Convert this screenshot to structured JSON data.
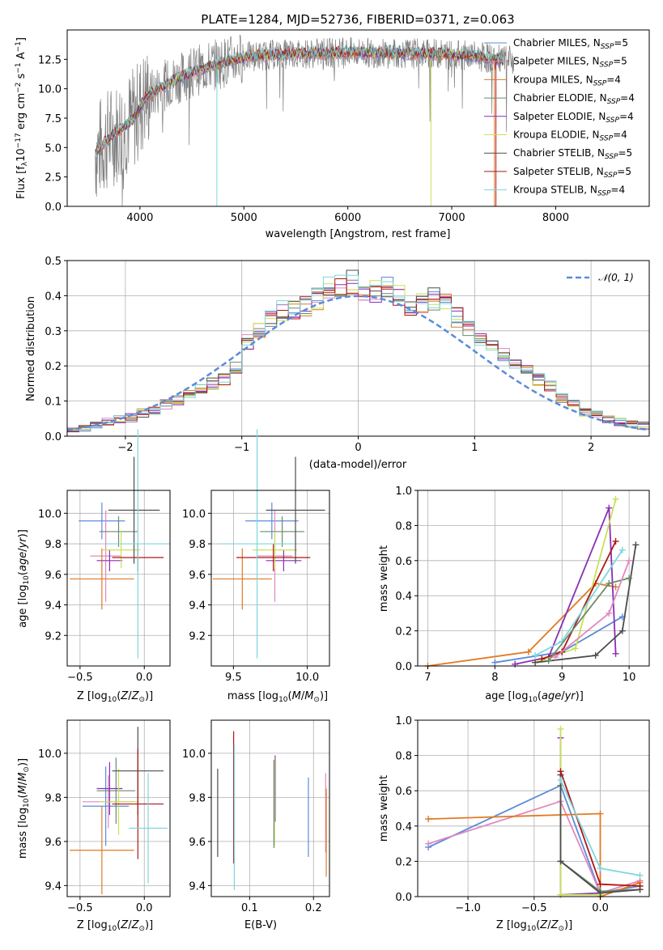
{
  "colors": {
    "chabrier_miles": "#5b8bd9",
    "salpeter_miles": "#e088c0",
    "kroupa_miles": "#e07a24",
    "chabrier_elodie": "#6b8a6b",
    "salpeter_elodie": "#8a2fb5",
    "kroupa_elodie": "#c9e05a",
    "chabrier_stelib": "#4d4d4d",
    "salpeter_stelib": "#b01616",
    "kroupa_stelib": "#7dd6de",
    "data": "#7f7f7f",
    "gauss": "#5b8bd9"
  },
  "chart_data": [
    {
      "id": "spectrum",
      "type": "line",
      "title": "PLATE=1284, MJD=52736, FIBERID=0371, z=0.063",
      "xlabel": "wavelength [Angstrom, rest frame]",
      "ylabel": "Flux [f_λ10^-17 erg cm^-2 s^-1 A^-1]",
      "xlim": [
        3300,
        8900
      ],
      "ylim": [
        0,
        15
      ],
      "xticks": [
        "4000",
        "5000",
        "6000",
        "7000",
        "8000"
      ],
      "yticks": [
        "0.0",
        "2.5",
        "5.0",
        "7.5",
        "10.0",
        "12.5"
      ],
      "continuum": {
        "x": [
          3570,
          3700,
          3850,
          3950,
          4050,
          4150,
          4300,
          4500,
          4700,
          5000,
          5300,
          5600,
          6000,
          6400,
          6800,
          7200,
          7500
        ],
        "y": [
          4.5,
          5.8,
          6.8,
          7.6,
          9.2,
          9.8,
          10.6,
          11.4,
          12.0,
          12.7,
          12.9,
          13.0,
          13.1,
          13.0,
          13.0,
          12.8,
          12.4
        ]
      },
      "legend": [
        "Chabrier MILES, N_SSP=5",
        "Salpeter MILES, N_SSP=5",
        "Kroupa MILES, N_SSP=4",
        "Chabrier ELODIE, N_SSP=4",
        "Salpeter ELODIE, N_SSP=4",
        "Kroupa ELODIE, N_SSP=4",
        "Chabrier STELIB, N_SSP=5",
        "Salpeter STELIB, N_SSP=5",
        "Kroupa STELIB, N_SSP=4"
      ],
      "legend_placement": "right",
      "grid": false
    },
    {
      "id": "residuals",
      "type": "step",
      "xlabel": "(data-model)/error",
      "ylabel": "Normed distribution",
      "xlim": [
        -2.5,
        2.5
      ],
      "ylim": [
        0,
        0.5
      ],
      "xticks": [
        "−2",
        "−1",
        "0",
        "1",
        "2"
      ],
      "yticks": [
        "0.0",
        "0.1",
        "0.2",
        "0.3",
        "0.4",
        "0.5"
      ],
      "bin_width": 0.1,
      "histogram_envelope": [
        0.02,
        0.022,
        0.03,
        0.042,
        0.048,
        0.052,
        0.065,
        0.075,
        0.09,
        0.1,
        0.125,
        0.14,
        0.15,
        0.16,
        0.2,
        0.27,
        0.3,
        0.33,
        0.36,
        0.355,
        0.37,
        0.39,
        0.42,
        0.43,
        0.44,
        0.42,
        0.41,
        0.42,
        0.4,
        0.36,
        0.38,
        0.39,
        0.38,
        0.34,
        0.3,
        0.28,
        0.25,
        0.23,
        0.21,
        0.19,
        0.16,
        0.14,
        0.11,
        0.09,
        0.07,
        0.06,
        0.05,
        0.04,
        0.035,
        0.03
      ],
      "gauss_label": "𝒩(0, 1)",
      "grid": true
    },
    {
      "id": "age_vs_Z",
      "type": "errorbar",
      "xlabel": "Z [log10(Z/Z⊙)]",
      "ylabel": "age  [log10(age/yr)]",
      "xlim": [
        -0.6,
        0.2
      ],
      "ylim": [
        9.0,
        10.15
      ],
      "xticks": [
        "−0.5",
        "0.0"
      ],
      "yticks": [
        "9.2",
        "9.4",
        "9.6",
        "9.8",
        "10.0"
      ],
      "points": [
        {
          "x": -0.33,
          "xerr": 0.18,
          "y": 9.95,
          "yerr": 0.12,
          "model": "chabrier_miles"
        },
        {
          "x": -0.3,
          "xerr": 0.12,
          "y": 9.72,
          "yerr": 0.3,
          "model": "salpeter_miles"
        },
        {
          "x": -0.33,
          "xerr": 0.25,
          "y": 9.57,
          "yerr": 0.2,
          "model": "kroupa_miles"
        },
        {
          "x": -0.2,
          "xerr": 0.15,
          "y": 9.88,
          "yerr": 0.1,
          "model": "chabrier_elodie"
        },
        {
          "x": -0.27,
          "xerr": 0.1,
          "y": 9.69,
          "yerr": 0.07,
          "model": "salpeter_elodie"
        },
        {
          "x": -0.18,
          "xerr": 0.15,
          "y": 9.76,
          "yerr": 0.12,
          "model": "kroupa_elodie"
        },
        {
          "x": -0.08,
          "xerr": 0.2,
          "y": 10.02,
          "yerr": 0.35,
          "model": "chabrier_stelib"
        },
        {
          "x": -0.05,
          "xerr": 0.2,
          "y": 9.71,
          "yerr": 0.09,
          "model": "salpeter_stelib"
        },
        {
          "x": -0.05,
          "xerr": 0.25,
          "y": 9.8,
          "yerr": 0.75,
          "model": "kroupa_stelib"
        }
      ],
      "grid": true
    },
    {
      "id": "age_vs_mass",
      "type": "errorbar",
      "xlabel": "mass [log10(M/M⊙)]",
      "ylabel": "",
      "xlim": [
        9.35,
        10.15
      ],
      "ylim": [
        9.0,
        10.15
      ],
      "xticks": [
        "9.5",
        "10.0"
      ],
      "yticks": [
        "9.2",
        "9.4",
        "9.6",
        "9.8",
        "10.0"
      ],
      "points": [
        {
          "x": 9.76,
          "xerr": 0.18,
          "y": 9.95,
          "yerr": 0.12,
          "model": "chabrier_miles"
        },
        {
          "x": 9.78,
          "xerr": 0.12,
          "y": 9.72,
          "yerr": 0.3,
          "model": "salpeter_miles"
        },
        {
          "x": 9.56,
          "xerr": 0.2,
          "y": 9.57,
          "yerr": 0.2,
          "model": "kroupa_miles"
        },
        {
          "x": 9.83,
          "xerr": 0.15,
          "y": 9.88,
          "yerr": 0.1,
          "model": "chabrier_elodie"
        },
        {
          "x": 9.84,
          "xerr": 0.12,
          "y": 9.69,
          "yerr": 0.07,
          "model": "salpeter_elodie"
        },
        {
          "x": 9.78,
          "xerr": 0.15,
          "y": 9.76,
          "yerr": 0.12,
          "model": "kroupa_elodie"
        },
        {
          "x": 9.92,
          "xerr": 0.2,
          "y": 10.02,
          "yerr": 0.35,
          "model": "chabrier_stelib"
        },
        {
          "x": 9.77,
          "xerr": 0.25,
          "y": 9.71,
          "yerr": 0.09,
          "model": "salpeter_stelib"
        },
        {
          "x": 9.66,
          "xerr": 0.25,
          "y": 9.8,
          "yerr": 0.75,
          "model": "kroupa_stelib"
        }
      ],
      "grid": true
    },
    {
      "id": "weight_vs_age",
      "type": "line",
      "xlabel": "age  [log10(age/yr)]",
      "ylabel": "mass weight",
      "xlim": [
        6.85,
        10.3
      ],
      "ylim": [
        0,
        1.0
      ],
      "xticks": [
        "7",
        "8",
        "9",
        "10"
      ],
      "yticks": [
        "0.0",
        "0.2",
        "0.4",
        "0.6",
        "0.8",
        "1.0"
      ],
      "series": [
        {
          "model": "kroupa_miles",
          "x": [
            7.0,
            8.5,
            9.5,
            9.8
          ],
          "y": [
            0.0,
            0.08,
            0.47,
            0.45
          ]
        },
        {
          "model": "chabrier_miles",
          "x": [
            8.0,
            9.0,
            9.9
          ],
          "y": [
            0.02,
            0.08,
            0.28
          ]
        },
        {
          "model": "salpeter_elodie",
          "x": [
            8.3,
            8.8,
            9.7,
            9.8
          ],
          "y": [
            0.01,
            0.05,
            0.9,
            0.07
          ]
        },
        {
          "model": "kroupa_elodie",
          "x": [
            8.6,
            9.2,
            9.8
          ],
          "y": [
            0.02,
            0.1,
            0.95
          ]
        },
        {
          "model": "salpeter_stelib",
          "x": [
            8.7,
            9.0,
            9.8
          ],
          "y": [
            0.04,
            0.08,
            0.71
          ]
        },
        {
          "model": "kroupa_stelib",
          "x": [
            8.6,
            9.0,
            9.9
          ],
          "y": [
            0.06,
            0.14,
            0.66
          ]
        },
        {
          "model": "chabrier_stelib",
          "x": [
            8.6,
            9.5,
            9.9,
            10.1
          ],
          "y": [
            0.02,
            0.06,
            0.2,
            0.69
          ]
        },
        {
          "model": "chabrier_elodie",
          "x": [
            8.8,
            9.7,
            10.0
          ],
          "y": [
            0.03,
            0.47,
            0.5
          ]
        },
        {
          "model": "salpeter_miles",
          "x": [
            8.9,
            9.7,
            10.0
          ],
          "y": [
            0.05,
            0.3,
            0.6
          ]
        }
      ],
      "grid": true
    },
    {
      "id": "mass_vs_Z",
      "type": "errorbar",
      "xlabel": "Z [log10(Z/Z⊙)]",
      "ylabel": "mass [log10(M/M⊙)]",
      "xlim": [
        -0.6,
        0.2
      ],
      "ylim": [
        9.35,
        10.15
      ],
      "xticks": [
        "−0.5",
        "0.0"
      ],
      "yticks": [
        "9.4",
        "9.6",
        "9.8",
        "10.0"
      ],
      "points": [
        {
          "x": -0.3,
          "xerr": 0.18,
          "y": 9.76,
          "yerr": 0.18,
          "model": "chabrier_miles"
        },
        {
          "x": -0.28,
          "xerr": 0.2,
          "y": 9.78,
          "yerr": 0.12,
          "model": "salpeter_miles"
        },
        {
          "x": -0.33,
          "xerr": 0.25,
          "y": 9.56,
          "yerr": 0.2,
          "model": "kroupa_miles"
        },
        {
          "x": -0.22,
          "xerr": 0.15,
          "y": 9.83,
          "yerr": 0.15,
          "model": "chabrier_elodie"
        },
        {
          "x": -0.27,
          "xerr": 0.1,
          "y": 9.84,
          "yerr": 0.12,
          "model": "salpeter_elodie"
        },
        {
          "x": -0.2,
          "xerr": 0.15,
          "y": 9.78,
          "yerr": 0.15,
          "model": "kroupa_elodie"
        },
        {
          "x": -0.05,
          "xerr": 0.2,
          "y": 9.92,
          "yerr": 0.2,
          "model": "chabrier_stelib"
        },
        {
          "x": -0.05,
          "xerr": 0.2,
          "y": 9.77,
          "yerr": 0.25,
          "model": "salpeter_stelib"
        },
        {
          "x": 0.03,
          "xerr": 0.15,
          "y": 9.66,
          "yerr": 0.25,
          "model": "kroupa_stelib"
        }
      ],
      "grid": true
    },
    {
      "id": "mass_vs_ebv",
      "type": "errorbar",
      "xlabel": "E(B-V)",
      "ylabel": "",
      "xlim": [
        0.04,
        0.225
      ],
      "ylim": [
        9.35,
        10.15
      ],
      "xticks": [
        "0.1",
        "0.2"
      ],
      "yticks": [
        "9.4",
        "9.6",
        "9.8",
        "10.0"
      ],
      "points": [
        {
          "x": 0.05,
          "yerr": 0.2,
          "y": 9.73,
          "model": "chabrier_stelib"
        },
        {
          "x": 0.075,
          "yerr": 0.3,
          "y": 9.8,
          "model": "salpeter_stelib"
        },
        {
          "x": 0.076,
          "yerr": 0.33,
          "y": 9.71,
          "model": "kroupa_stelib"
        },
        {
          "x": 0.14,
          "yerr": 0.15,
          "y": 9.84,
          "model": "salpeter_elodie"
        },
        {
          "x": 0.139,
          "yerr": 0.2,
          "y": 9.78,
          "model": "kroupa_elodie"
        },
        {
          "x": 0.138,
          "yerr": 0.2,
          "y": 9.77,
          "model": "chabrier_elodie"
        },
        {
          "x": 0.192,
          "yerr": 0.18,
          "y": 9.71,
          "model": "chabrier_miles"
        },
        {
          "x": 0.219,
          "yerr": 0.18,
          "y": 9.73,
          "model": "salpeter_miles"
        },
        {
          "x": 0.22,
          "yerr": 0.2,
          "y": 9.64,
          "model": "kroupa_miles"
        }
      ],
      "grid": true
    },
    {
      "id": "weight_vs_Z",
      "type": "line",
      "xlabel": "Z [log10(Z/Z⊙)]",
      "ylabel": "mass weight",
      "xlim": [
        -1.38,
        0.37
      ],
      "ylim": [
        0,
        1.0
      ],
      "xticks": [
        "−1.0",
        "−0.5",
        "0.0"
      ],
      "yticks": [
        "0.0",
        "0.2",
        "0.4",
        "0.6",
        "0.8",
        "1.0"
      ],
      "series": [
        {
          "model": "chabrier_miles",
          "x": [
            -1.3,
            -0.3,
            0.0,
            0.3
          ],
          "y": [
            0.28,
            0.63,
            0.02,
            0.06
          ]
        },
        {
          "model": "salpeter_miles",
          "x": [
            -1.3,
            -0.3,
            0.0,
            0.3
          ],
          "y": [
            0.3,
            0.54,
            0.02,
            0.09
          ]
        },
        {
          "model": "kroupa_miles",
          "x": [
            -1.3,
            0.0,
            0.0,
            0.3
          ],
          "y": [
            0.44,
            0.47,
            0.0,
            0.08
          ]
        },
        {
          "model": "chabrier_elodie",
          "x": [
            -0.3,
            -0.3,
            0.0,
            0.3
          ],
          "y": [
            0.63,
            0.2,
            0.03,
            0.04
          ]
        },
        {
          "model": "salpeter_elodie",
          "x": [
            -0.3,
            -0.3,
            0.0
          ],
          "y": [
            0.9,
            0.01,
            0.02
          ]
        },
        {
          "model": "kroupa_elodie",
          "x": [
            -0.3,
            -0.3,
            0.0
          ],
          "y": [
            0.95,
            0.01,
            0.01
          ]
        },
        {
          "model": "chabrier_stelib",
          "x": [
            -0.3,
            -0.3,
            0.0,
            0.3
          ],
          "y": [
            0.69,
            0.2,
            0.02,
            0.04
          ]
        },
        {
          "model": "salpeter_stelib",
          "x": [
            -0.3,
            0.0,
            0.3
          ],
          "y": [
            0.71,
            0.07,
            0.06
          ]
        },
        {
          "model": "kroupa_stelib",
          "x": [
            -0.3,
            0.0,
            0.3
          ],
          "y": [
            0.66,
            0.16,
            0.12
          ]
        }
      ],
      "grid": true
    }
  ]
}
